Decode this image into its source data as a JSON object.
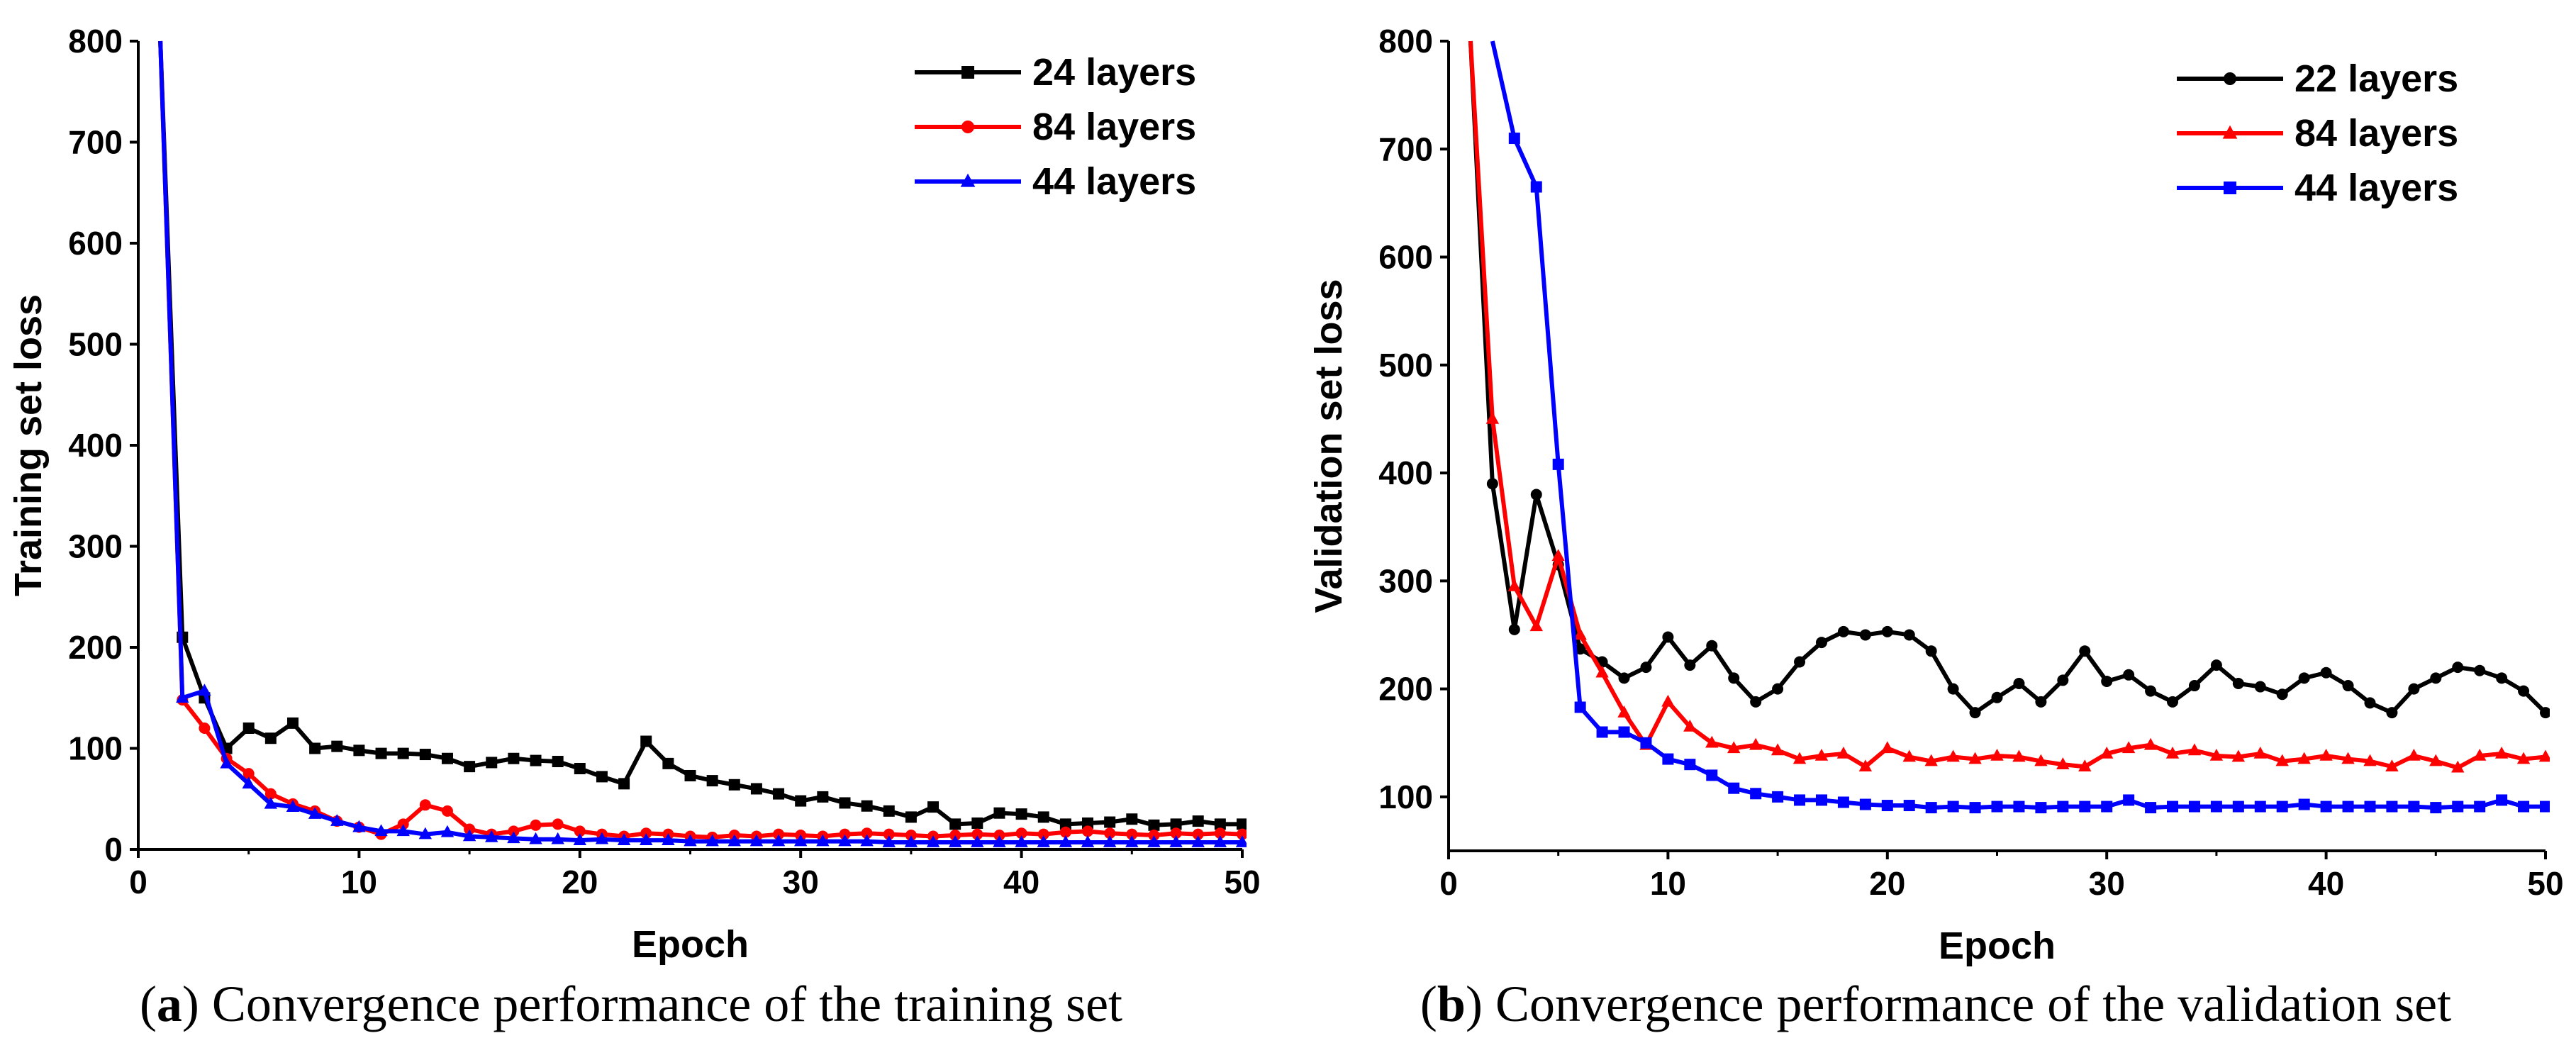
{
  "chart_data": [
    {
      "type": "line",
      "caption_letter": "a",
      "caption_text": "Convergence performance of the training set",
      "xlabel": "Epoch",
      "ylabel": "Training set loss",
      "xlim": [
        0,
        50
      ],
      "ylim": [
        0,
        800
      ],
      "xticks": [
        0,
        10,
        20,
        30,
        40,
        50
      ],
      "yticks": [
        0,
        100,
        200,
        300,
        400,
        500,
        600,
        700,
        800
      ],
      "grid": false,
      "legend_position": "top-right",
      "series": [
        {
          "name": "24 layers",
          "color": "#000000",
          "marker": "square",
          "x": [
            1,
            2,
            3,
            4,
            5,
            6,
            7,
            8,
            9,
            10,
            11,
            12,
            13,
            14,
            15,
            16,
            17,
            18,
            19,
            20,
            21,
            22,
            23,
            24,
            25,
            26,
            27,
            28,
            29,
            30,
            31,
            32,
            33,
            34,
            35,
            36,
            37,
            38,
            39,
            40,
            41,
            42,
            43,
            44,
            45,
            46,
            47,
            48,
            49,
            50
          ],
          "y": [
            800,
            210,
            150,
            100,
            120,
            110,
            125,
            100,
            102,
            98,
            95,
            95,
            94,
            90,
            82,
            86,
            90,
            88,
            87,
            80,
            72,
            65,
            107,
            85,
            73,
            68,
            64,
            60,
            55,
            48,
            52,
            46,
            43,
            38,
            32,
            42,
            25,
            26,
            36,
            35,
            32,
            25,
            26,
            27,
            30,
            24,
            25,
            28,
            25,
            25
          ]
        },
        {
          "name": "84 layers",
          "color": "#ff0000",
          "marker": "circle",
          "x": [
            1,
            2,
            3,
            4,
            5,
            6,
            7,
            8,
            9,
            10,
            11,
            12,
            13,
            14,
            15,
            16,
            17,
            18,
            19,
            20,
            21,
            22,
            23,
            24,
            25,
            26,
            27,
            28,
            29,
            30,
            31,
            32,
            33,
            34,
            35,
            36,
            37,
            38,
            39,
            40,
            41,
            42,
            43,
            44,
            45,
            46,
            47,
            48,
            49,
            50
          ],
          "y": [
            800,
            148,
            120,
            90,
            75,
            55,
            45,
            38,
            28,
            22,
            15,
            25,
            44,
            38,
            20,
            15,
            18,
            24,
            25,
            18,
            15,
            13,
            16,
            15,
            13,
            12,
            14,
            13,
            15,
            14,
            13,
            15,
            16,
            15,
            14,
            13,
            14,
            15,
            14,
            16,
            15,
            17,
            18,
            16,
            15,
            14,
            16,
            15,
            16,
            15
          ]
        },
        {
          "name": "44 layers",
          "color": "#0000ff",
          "marker": "triangle",
          "x": [
            1,
            2,
            3,
            4,
            5,
            6,
            7,
            8,
            9,
            10,
            11,
            12,
            13,
            14,
            15,
            16,
            17,
            18,
            19,
            20,
            21,
            22,
            23,
            24,
            25,
            26,
            27,
            28,
            29,
            30,
            31,
            32,
            33,
            34,
            35,
            36,
            37,
            38,
            39,
            40,
            41,
            42,
            43,
            44,
            45,
            46,
            47,
            48,
            49,
            50
          ],
          "y": [
            800,
            150,
            157,
            85,
            65,
            45,
            42,
            35,
            28,
            22,
            18,
            18,
            15,
            17,
            13,
            12,
            11,
            10,
            10,
            9,
            10,
            9,
            9,
            9,
            8,
            8,
            8,
            8,
            8,
            8,
            8,
            8,
            8,
            7,
            7,
            7,
            7,
            7,
            7,
            7,
            7,
            7,
            7,
            7,
            7,
            7,
            7,
            7,
            7,
            7
          ]
        }
      ]
    },
    {
      "type": "line",
      "caption_letter": "b",
      "caption_text": "Convergence performance of the validation set",
      "xlabel": "Epoch",
      "ylabel": "Validation set loss",
      "xlim": [
        0,
        50
      ],
      "ylim": [
        50,
        800
      ],
      "xticks": [
        0,
        10,
        20,
        30,
        40,
        50
      ],
      "yticks": [
        100,
        200,
        300,
        400,
        500,
        600,
        700,
        800
      ],
      "grid": false,
      "legend_position": "top-right",
      "series": [
        {
          "name": "22 layers",
          "color": "#000000",
          "marker": "circle",
          "x": [
            1,
            2,
            3,
            4,
            5,
            6,
            7,
            8,
            9,
            10,
            11,
            12,
            13,
            14,
            15,
            16,
            17,
            18,
            19,
            20,
            21,
            22,
            23,
            24,
            25,
            26,
            27,
            28,
            29,
            30,
            31,
            32,
            33,
            34,
            35,
            36,
            37,
            38,
            39,
            40,
            41,
            42,
            43,
            44,
            45,
            46,
            47,
            48,
            49,
            50
          ],
          "y": [
            800,
            390,
            255,
            380,
            315,
            237,
            225,
            210,
            220,
            248,
            222,
            240,
            210,
            188,
            200,
            225,
            243,
            253,
            250,
            253,
            250,
            235,
            200,
            178,
            192,
            205,
            188,
            208,
            235,
            207,
            213,
            198,
            188,
            203,
            222,
            205,
            202,
            195,
            210,
            215,
            203,
            187,
            178,
            200,
            210,
            220,
            217,
            210,
            198,
            178
          ]
        },
        {
          "name": "84 layers",
          "color": "#ff0000",
          "marker": "triangle",
          "x": [
            1,
            2,
            3,
            4,
            5,
            6,
            7,
            8,
            9,
            10,
            11,
            12,
            13,
            14,
            15,
            16,
            17,
            18,
            19,
            20,
            21,
            22,
            23,
            24,
            25,
            26,
            27,
            28,
            29,
            30,
            31,
            32,
            33,
            34,
            35,
            36,
            37,
            38,
            39,
            40,
            41,
            42,
            43,
            44,
            45,
            46,
            47,
            48,
            49,
            50
          ],
          "y": [
            800,
            450,
            295,
            258,
            323,
            250,
            215,
            178,
            148,
            188,
            165,
            150,
            145,
            148,
            143,
            135,
            138,
            140,
            128,
            145,
            137,
            133,
            137,
            135,
            138,
            137,
            133,
            130,
            128,
            140,
            145,
            148,
            140,
            143,
            138,
            137,
            140,
            133,
            135,
            138,
            135,
            133,
            128,
            138,
            133,
            127,
            138,
            140,
            135,
            137
          ]
        },
        {
          "name": "44 layers",
          "color": "#0000ff",
          "marker": "square",
          "x": [
            3,
            4,
            5,
            6,
            7,
            8,
            9,
            10,
            11,
            12,
            13,
            14,
            15,
            16,
            17,
            18,
            19,
            20,
            21,
            22,
            23,
            24,
            25,
            26,
            27,
            28,
            29,
            30,
            31,
            32,
            33,
            34,
            35,
            36,
            37,
            38,
            39,
            40,
            41,
            42,
            43,
            44,
            45,
            46,
            47,
            48,
            49,
            50
          ],
          "y": [
            710,
            665,
            408,
            183,
            160,
            160,
            150,
            135,
            130,
            120,
            108,
            103,
            100,
            97,
            97,
            95,
            93,
            92,
            92,
            90,
            91,
            90,
            91,
            91,
            90,
            91,
            91,
            91,
            97,
            90,
            91,
            91,
            91,
            91,
            91,
            91,
            93,
            91,
            91,
            91,
            91,
            91,
            90,
            91,
            91,
            97,
            91,
            91
          ],
          "entry_from": [
            2,
            800
          ]
        }
      ]
    }
  ]
}
